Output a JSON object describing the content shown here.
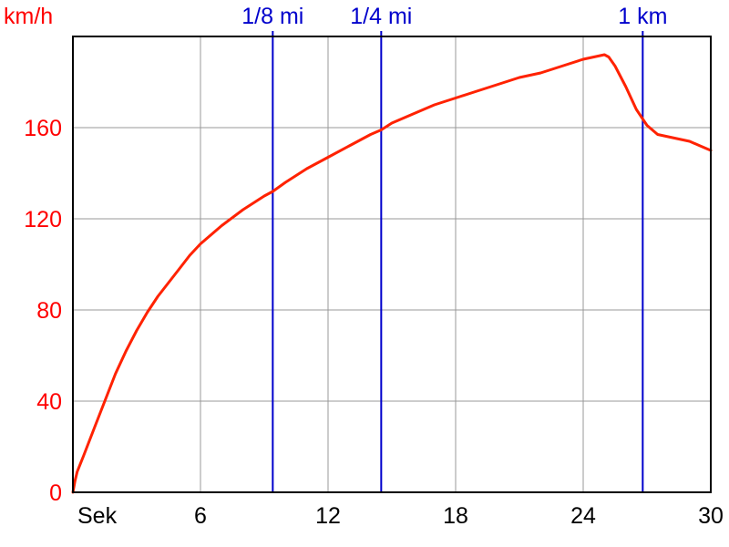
{
  "chart_data": {
    "type": "line",
    "title": "",
    "ylabel": "km/h",
    "xlabel": "Sek",
    "xlim": [
      0,
      30
    ],
    "ylim": [
      0,
      200
    ],
    "grid": true,
    "x_ticks": [
      {
        "value": 0,
        "label": "Sek"
      },
      {
        "value": 6,
        "label": "6"
      },
      {
        "value": 12,
        "label": "12"
      },
      {
        "value": 18,
        "label": "18"
      },
      {
        "value": 24,
        "label": "24"
      },
      {
        "value": 30,
        "label": "30"
      }
    ],
    "y_ticks": [
      {
        "value": 0,
        "label": "0"
      },
      {
        "value": 40,
        "label": "40"
      },
      {
        "value": 80,
        "label": "80"
      },
      {
        "value": 120,
        "label": "120"
      },
      {
        "value": 160,
        "label": "160"
      }
    ],
    "markers": [
      {
        "label": "1/8 mi",
        "x": 9.4
      },
      {
        "label": "1/4 mi",
        "x": 14.5
      },
      {
        "label": "1 km",
        "x": 26.8
      }
    ],
    "series": [
      {
        "x": [
          0,
          0.1,
          0.2,
          0.5,
          1.0,
          1.5,
          2.0,
          2.5,
          3.0,
          3.5,
          4.0,
          4.5,
          5.0,
          5.5,
          6.0,
          7.0,
          8.0,
          9.0,
          9.4,
          10.0,
          11.0,
          12.0,
          13.0,
          14.0,
          14.5,
          15.0,
          16.0,
          17.0,
          18.0,
          19.0,
          20.0,
          21.0,
          22.0,
          23.0,
          24.0,
          24.5,
          25.0,
          25.2,
          25.5,
          26.0,
          26.5,
          27.0,
          27.5,
          28.0,
          28.5,
          29.0,
          29.5,
          30.0
        ],
        "values": [
          0,
          5,
          9,
          16,
          28,
          40,
          52,
          62,
          71,
          79,
          86,
          92,
          98,
          104,
          109,
          117,
          124,
          130,
          132,
          136,
          142,
          147,
          152,
          157,
          159,
          162,
          166,
          170,
          173,
          176,
          179,
          182,
          184,
          187,
          190,
          191,
          192,
          191,
          187,
          178,
          168,
          161,
          157,
          156,
          155,
          154,
          152,
          150
        ]
      }
    ],
    "colors": {
      "line": "#ff2200",
      "marker": "#0000cc",
      "grid": "#999999",
      "axis_text": "#ff0000",
      "x_text": "#000000"
    }
  }
}
